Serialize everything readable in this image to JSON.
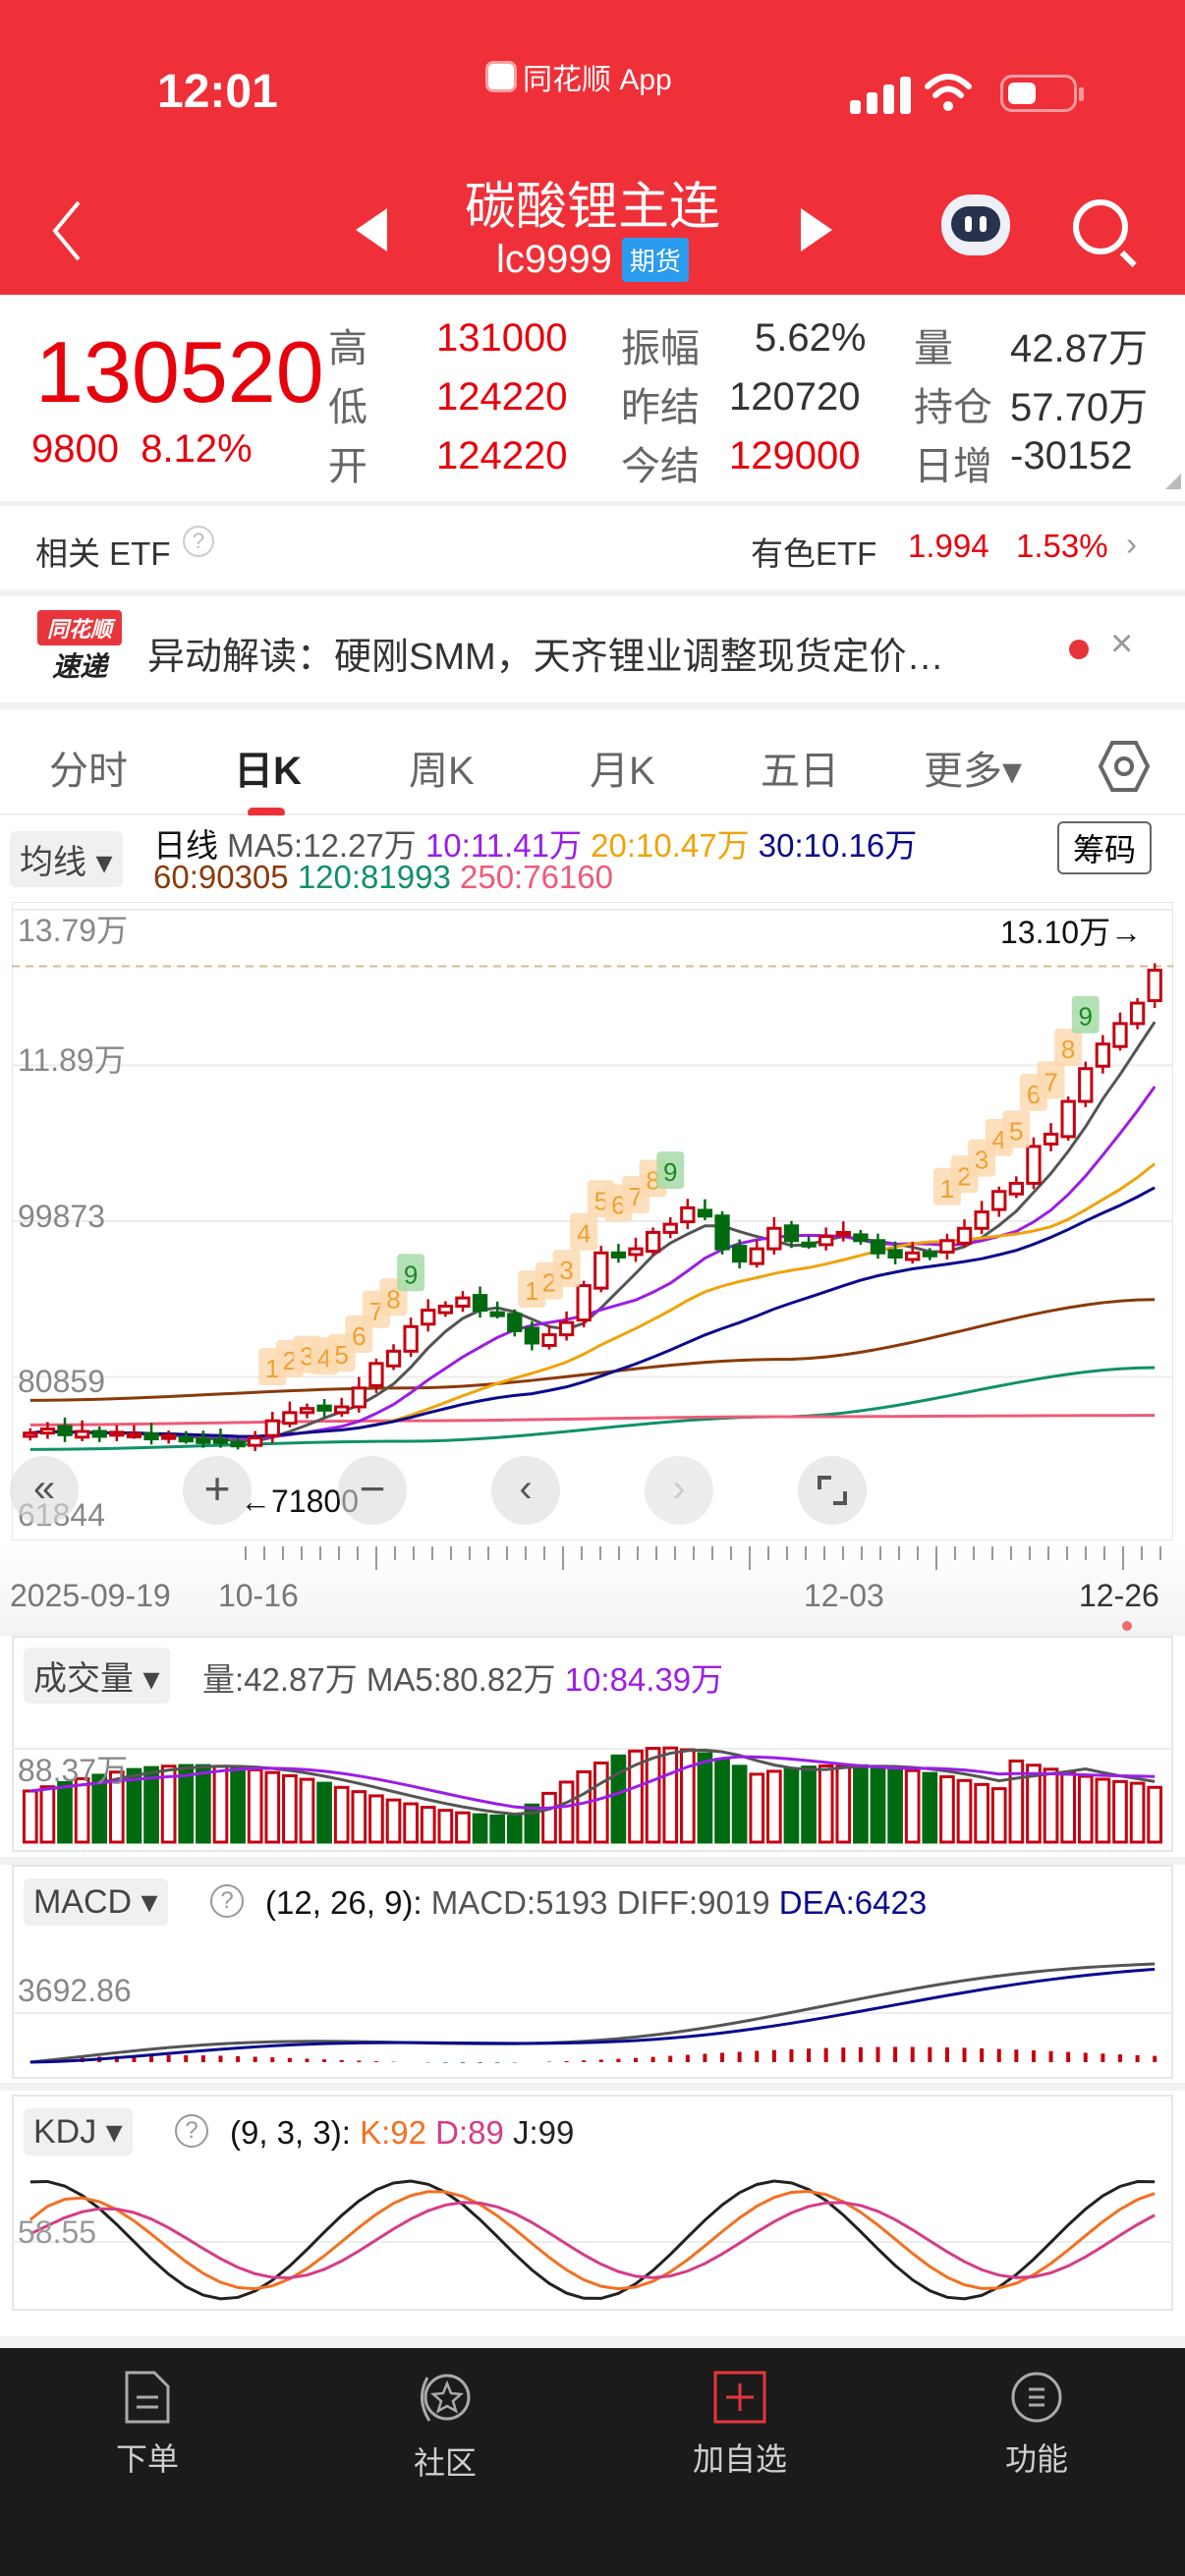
{
  "status_bar": {
    "time": "12:01",
    "app_label": "同花顺 App"
  },
  "header": {
    "title": "碳酸锂主连",
    "code": "lc9999",
    "tag": "期货"
  },
  "quote": {
    "price": "130520",
    "change": "9800",
    "change_pct": "8.12%",
    "fields": [
      {
        "label": "高",
        "value": "131000",
        "color": "red"
      },
      {
        "label": "振幅",
        "value": "5.62%",
        "color": "dark"
      },
      {
        "label": "量",
        "value": "42.87万",
        "color": "dark"
      },
      {
        "label": "低",
        "value": "124220",
        "color": "red"
      },
      {
        "label": "昨结",
        "value": "120720",
        "color": "dark"
      },
      {
        "label": "持仓",
        "value": "57.70万",
        "color": "dark"
      },
      {
        "label": "开",
        "value": "124220",
        "color": "red"
      },
      {
        "label": "今结",
        "value": "129000",
        "color": "red"
      },
      {
        "label": "日增",
        "value": "-30152",
        "color": "dark"
      }
    ]
  },
  "etf": {
    "label": "相关 ETF",
    "name": "有色ETF",
    "price": "1.994",
    "pct": "1.53%"
  },
  "news": {
    "badge_top": "同花顺",
    "badge_bottom": "速递",
    "text": "异动解读：硬刚SMM，天齐锂业调整现货定价…"
  },
  "tabs": [
    {
      "label": "分时"
    },
    {
      "label": "日K"
    },
    {
      "label": "周K"
    },
    {
      "label": "月K"
    },
    {
      "label": "五日"
    },
    {
      "label": "更多▾"
    }
  ],
  "ma_legend": {
    "dropdown": "均线",
    "period": "日线",
    "items": [
      {
        "text": "MA5:12.27万",
        "color": "#555555"
      },
      {
        "text": "10:11.41万",
        "color": "#9b1de8"
      },
      {
        "text": "20:10.47万",
        "color": "#f0a30a"
      },
      {
        "text": "30:10.16万",
        "color": "#0a0a8c"
      },
      {
        "text": "60:90305",
        "color": "#8b3a0a"
      },
      {
        "text": "120:81993",
        "color": "#12906a"
      },
      {
        "text": "250:76160",
        "color": "#ee5a78"
      }
    ],
    "chip": "筹码"
  },
  "chart_labels": {
    "y_ticks": [
      "13.79万",
      "11.89万",
      "99873",
      "80859",
      "61844"
    ],
    "last_price_marker": "13.10万→",
    "low_marker": "←71800",
    "x_ticks": [
      "2025-09-19",
      "10-16",
      "12-03",
      "12-26"
    ]
  },
  "volume": {
    "dropdown": "成交量",
    "vol": "量:42.87万",
    "ma5": "MA5:80.82万",
    "ma10": "10:84.39万",
    "tick": "88.37万"
  },
  "macd": {
    "dropdown": "MACD",
    "params": "(12, 26, 9):",
    "macd": "MACD:5193",
    "diff": "DIFF:9019",
    "dea": "DEA:6423",
    "tick": "3692.86"
  },
  "kdj": {
    "dropdown": "KDJ",
    "params": "(9, 3, 3):",
    "k": "K:92",
    "d": "D:89",
    "j": "J:99",
    "tick": "58.55"
  },
  "footer": [
    {
      "label": "下单",
      "icon": "order-doc-icon"
    },
    {
      "label": "社区",
      "icon": "community-star-icon"
    },
    {
      "label": "加自选",
      "icon": "add-watchlist-icon"
    },
    {
      "label": "功能",
      "icon": "menu-icon"
    }
  ],
  "chart_data": [
    {
      "type": "candlestick",
      "title": "碳酸锂主连 日K",
      "x_range": [
        "2025-09-19",
        "2025-12-26"
      ],
      "y_range": [
        61844,
        137900
      ],
      "candles_close": [
        74000,
        74500,
        73800,
        74200,
        73600,
        74100,
        73900,
        73300,
        73700,
        73200,
        72900,
        73100,
        72500,
        73400,
        75500,
        76500,
        77000,
        76800,
        77200,
        79500,
        82500,
        84000,
        87000,
        89000,
        89500,
        90500,
        89000,
        88500,
        86500,
        85000,
        86000,
        87500,
        92000,
        96000,
        95500,
        96500,
        98500,
        99500,
        101500,
        100500,
        96500,
        95000,
        96500,
        99000,
        97500,
        97000,
        98000,
        98500,
        97500,
        96000,
        95500,
        96000,
        95800,
        97500,
        99000,
        101000,
        103500,
        104500,
        109000,
        110500,
        114500,
        118500,
        121500,
        124000,
        126500,
        130520
      ],
      "ma": {
        "MA5": 122700,
        "MA10": 114100,
        "MA20": 104700,
        "MA30": 101600,
        "MA60": 90305,
        "MA120": 81993,
        "MA250": 76160
      }
    },
    {
      "type": "bar",
      "title": "成交量",
      "last": "42.87万",
      "ma5": "80.82万",
      "ma10": "84.39万"
    },
    {
      "type": "line",
      "title": "MACD(12,26,9)",
      "series": [
        {
          "name": "MACD",
          "value": 5193
        },
        {
          "name": "DIFF",
          "value": 9019
        },
        {
          "name": "DEA",
          "value": 6423
        }
      ]
    },
    {
      "type": "line",
      "title": "KDJ(9,3,3)",
      "series": [
        {
          "name": "K",
          "value": 92
        },
        {
          "name": "D",
          "value": 89
        },
        {
          "name": "J",
          "value": 99
        }
      ]
    }
  ]
}
